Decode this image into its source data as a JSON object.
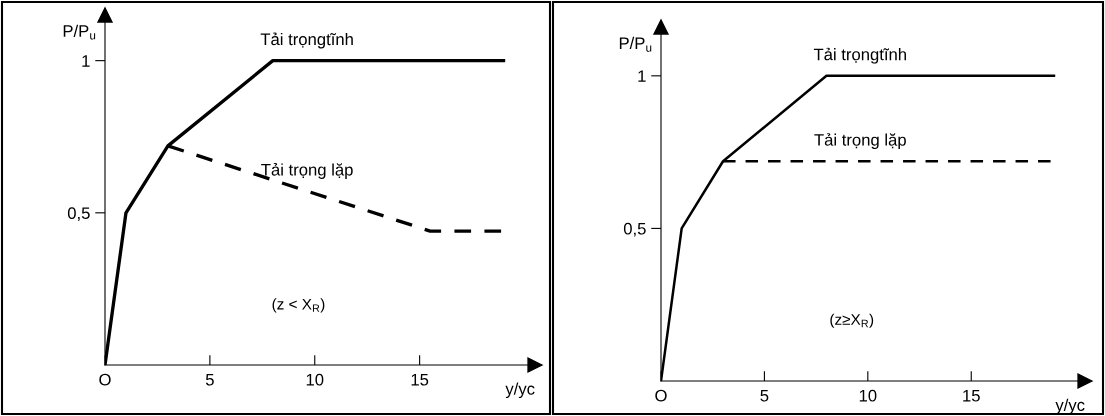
{
  "chart_data": [
    {
      "type": "line",
      "xlabel": "y/yc",
      "ylabel": "P/P$_{u}$",
      "xlim": [
        0,
        20.5
      ],
      "ylim": [
        0,
        1.15
      ],
      "xticks": [
        {
          "value": 0,
          "label": "O"
        },
        5,
        10,
        15
      ],
      "yticks": [
        {
          "value": 0.5,
          "label": "0,5"
        },
        1
      ],
      "series": [
        {
          "name": "Tải trọngtĩnh",
          "color": "#000000",
          "line_style": "solid",
          "x": [
            0,
            1,
            3,
            8,
            19
          ],
          "values": [
            0,
            0.5,
            0.72,
            1,
            1
          ]
        },
        {
          "name": "Tải trọng lặp",
          "color": "#000000",
          "line_style": "dashed",
          "x": [
            3,
            15.5,
            19
          ],
          "values": [
            0.72,
            0.44,
            0.44
          ]
        }
      ],
      "annotations": [
        "(z < X$_{R}$)"
      ],
      "legend": false,
      "grid": false
    },
    {
      "type": "line",
      "xlabel": "y/yc",
      "ylabel": "P/P$_{u}$",
      "xlim": [
        0,
        20.5
      ],
      "ylim": [
        0,
        1.16
      ],
      "xticks": [
        {
          "value": 0,
          "label": "O"
        },
        5,
        10,
        15
      ],
      "yticks": [
        {
          "value": 0.5,
          "label": "0,5"
        },
        1
      ],
      "series": [
        {
          "name": "Tải trọngtĩnh",
          "color": "#000000",
          "line_style": "solid",
          "x": [
            0,
            1,
            3,
            8,
            19
          ],
          "values": [
            0,
            0.5,
            0.72,
            1,
            1
          ]
        },
        {
          "name": "Tải trọng lặp",
          "color": "#000000",
          "line_style": "dashed",
          "x": [
            3,
            19
          ],
          "values": [
            0.72,
            0.72
          ]
        }
      ],
      "annotations": [
        "(z≥X$_{R}$)"
      ],
      "legend": false,
      "grid": false
    }
  ]
}
